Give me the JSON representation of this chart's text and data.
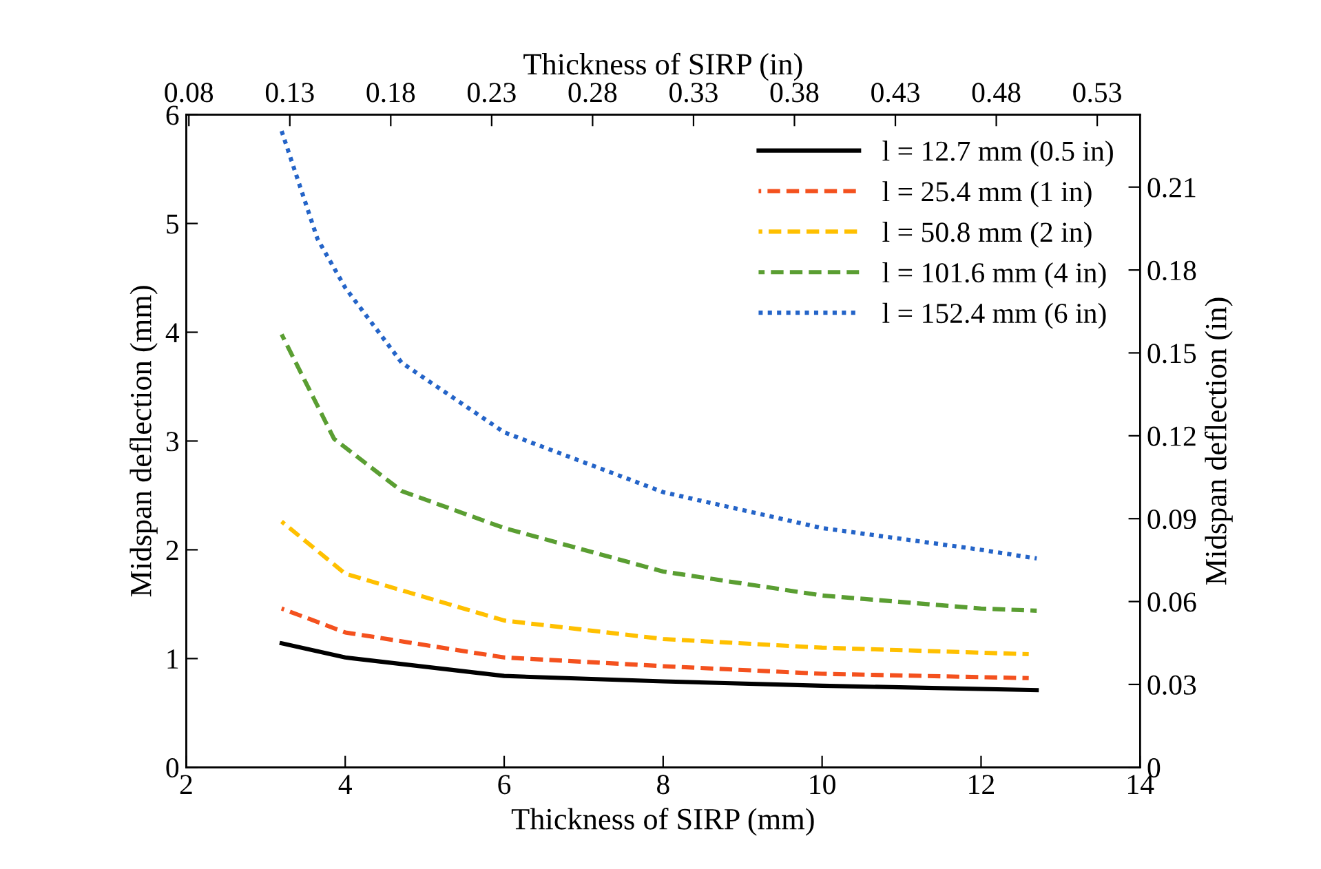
{
  "chart_data": {
    "type": "line",
    "xlabel": "Thickness of SIRP (mm)",
    "ylabel": "Midspan deflection (mm)",
    "y2label": "Midspan deflection (in)",
    "x2label": "Thickness of SIRP (in)",
    "xlim": [
      2,
      14
    ],
    "xticks": [
      2,
      4,
      6,
      8,
      10,
      12,
      14
    ],
    "ylim": [
      0,
      6
    ],
    "yticks": [
      0,
      1,
      2,
      3,
      4,
      5,
      6
    ],
    "y2lim": [
      0,
      0.2362
    ],
    "y2ticks": [
      0,
      0.03,
      0.06,
      0.09,
      0.12,
      0.15,
      0.18,
      0.21
    ],
    "x2lim": [
      0.0787,
      0.5512
    ],
    "x2ticks": [
      0.08,
      0.13,
      0.18,
      0.23,
      0.28,
      0.33,
      0.38,
      0.43,
      0.48,
      0.53
    ],
    "grid": false,
    "legend": "top right",
    "series": [
      {
        "name": "l = 12.7 mm (0.5 in)",
        "color": "#000000",
        "line_style": "solid",
        "x": [
          3.2,
          4,
          6,
          8,
          10,
          12.7
        ],
        "values": [
          1.14,
          1.01,
          0.84,
          0.79,
          0.75,
          0.71
        ]
      },
      {
        "name": "l = 25.4 mm (1 in)",
        "color": "#f4511e",
        "line_style": "dashed",
        "x": [
          3.2,
          4,
          6,
          8,
          10,
          12.6
        ],
        "values": [
          1.46,
          1.24,
          1.01,
          0.93,
          0.86,
          0.82
        ]
      },
      {
        "name": "l = 50.8 mm (2 in)",
        "color": "#ffc000",
        "line_style": "dashed",
        "x": [
          3.2,
          4,
          6,
          8,
          10,
          12.6
        ],
        "values": [
          2.26,
          1.78,
          1.35,
          1.18,
          1.1,
          1.04
        ]
      },
      {
        "name": "l = 101.6 mm (4 in)",
        "color": "#5a9e32",
        "line_style": "dashed",
        "x": [
          3.2,
          3.86,
          4.71,
          6,
          8,
          10,
          12,
          12.7
        ],
        "values": [
          3.98,
          3.02,
          2.54,
          2.2,
          1.8,
          1.58,
          1.46,
          1.44
        ]
      },
      {
        "name": "l = 152.4 mm (6 in)",
        "color": "#2464c8",
        "line_style": "dotted",
        "x": [
          3.2,
          3.65,
          4,
          4.71,
          6,
          8,
          10,
          12,
          12.7
        ],
        "values": [
          5.85,
          4.86,
          4.41,
          3.72,
          3.08,
          2.53,
          2.2,
          2.0,
          1.92
        ]
      }
    ]
  }
}
